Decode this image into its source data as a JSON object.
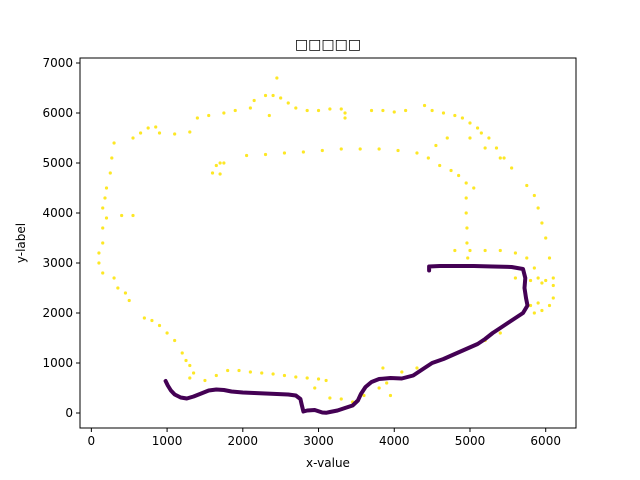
{
  "chart_data": {
    "type": "scatter",
    "title": "□□□□□",
    "xlabel": "x-value",
    "ylabel": "y-label",
    "xlim": [
      -150,
      6400
    ],
    "ylim": [
      -300,
      7100
    ],
    "xticks": [
      0,
      1000,
      2000,
      3000,
      4000,
      5000,
      6000
    ],
    "yticks": [
      0,
      1000,
      2000,
      3000,
      4000,
      5000,
      6000,
      7000
    ],
    "colors": {
      "background_points": "#fde725",
      "highlight_path": "#440154"
    },
    "series": [
      {
        "style": "scatter",
        "color": "#fde725",
        "points": [
          [
            550,
            5500
          ],
          [
            650,
            5600
          ],
          [
            750,
            5700
          ],
          [
            850,
            5720
          ],
          [
            900,
            5600
          ],
          [
            1100,
            5580
          ],
          [
            1300,
            5620
          ],
          [
            1400,
            5900
          ],
          [
            1550,
            5950
          ],
          [
            1750,
            6000
          ],
          [
            1900,
            6050
          ],
          [
            2100,
            6100
          ],
          [
            2150,
            6250
          ],
          [
            2300,
            6350
          ],
          [
            2400,
            6350
          ],
          [
            2500,
            6300
          ],
          [
            2600,
            6200
          ],
          [
            2450,
            6700
          ],
          [
            2700,
            6100
          ],
          [
            2850,
            6050
          ],
          [
            3000,
            6050
          ],
          [
            3150,
            6080
          ],
          [
            3300,
            6080
          ],
          [
            3350,
            6000
          ],
          [
            3350,
            5900
          ],
          [
            2350,
            5950
          ],
          [
            3700,
            6050
          ],
          [
            3850,
            6050
          ],
          [
            4000,
            6020
          ],
          [
            4150,
            6050
          ],
          [
            4400,
            6150
          ],
          [
            4500,
            6050
          ],
          [
            4650,
            6000
          ],
          [
            4800,
            5950
          ],
          [
            4900,
            5900
          ],
          [
            5000,
            5800
          ],
          [
            5100,
            5700
          ],
          [
            5150,
            5600
          ],
          [
            5250,
            5500
          ],
          [
            5350,
            5300
          ],
          [
            5450,
            5100
          ],
          [
            5550,
            4900
          ],
          [
            5750,
            4550
          ],
          [
            5850,
            4350
          ],
          [
            5900,
            4100
          ],
          [
            5950,
            3800
          ],
          [
            6000,
            3500
          ],
          [
            6050,
            3100
          ],
          [
            6100,
            2700
          ],
          [
            6100,
            2300
          ],
          [
            6050,
            2150
          ],
          [
            5950,
            2050
          ],
          [
            5850,
            2000
          ],
          [
            1650,
            4950
          ],
          [
            1700,
            5000
          ],
          [
            1750,
            5000
          ],
          [
            1600,
            4800
          ],
          [
            1700,
            4780
          ],
          [
            2050,
            5150
          ],
          [
            2300,
            5170
          ],
          [
            2550,
            5200
          ],
          [
            2800,
            5220
          ],
          [
            3050,
            5250
          ],
          [
            3300,
            5280
          ],
          [
            3550,
            5280
          ],
          [
            3800,
            5280
          ],
          [
            4050,
            5250
          ],
          [
            4300,
            5200
          ],
          [
            4450,
            5100
          ],
          [
            4600,
            4950
          ],
          [
            4750,
            4850
          ],
          [
            4850,
            4750
          ],
          [
            4950,
            4600
          ],
          [
            5050,
            4500
          ],
          [
            4550,
            5350
          ],
          [
            4700,
            5500
          ],
          [
            5000,
            5500
          ],
          [
            5200,
            5300
          ],
          [
            5400,
            5100
          ],
          [
            4950,
            4300
          ],
          [
            4950,
            4000
          ],
          [
            4960,
            3700
          ],
          [
            4960,
            3400
          ],
          [
            4970,
            3100
          ],
          [
            4800,
            3250
          ],
          [
            5000,
            3250
          ],
          [
            5200,
            3250
          ],
          [
            5400,
            3250
          ],
          [
            5600,
            3200
          ],
          [
            5750,
            3100
          ],
          [
            5850,
            2900
          ],
          [
            5900,
            2700
          ],
          [
            5950,
            2600
          ],
          [
            5600,
            2700
          ],
          [
            5800,
            2650
          ],
          [
            6000,
            2650
          ],
          [
            6100,
            2550
          ],
          [
            5900,
            2200
          ],
          [
            5800,
            2150
          ],
          [
            300,
            5400
          ],
          [
            270,
            5100
          ],
          [
            250,
            4800
          ],
          [
            200,
            4500
          ],
          [
            180,
            4300
          ],
          [
            150,
            4100
          ],
          [
            200,
            3900
          ],
          [
            400,
            3950
          ],
          [
            550,
            3950
          ],
          [
            150,
            3700
          ],
          [
            150,
            3400
          ],
          [
            100,
            3200
          ],
          [
            100,
            3000
          ],
          [
            150,
            2800
          ],
          [
            300,
            2700
          ],
          [
            350,
            2500
          ],
          [
            450,
            2400
          ],
          [
            500,
            2250
          ],
          [
            700,
            1900
          ],
          [
            800,
            1850
          ],
          [
            900,
            1750
          ],
          [
            1000,
            1600
          ],
          [
            1100,
            1450
          ],
          [
            1200,
            1200
          ],
          [
            1250,
            1050
          ],
          [
            1300,
            950
          ],
          [
            1350,
            800
          ],
          [
            1300,
            700
          ],
          [
            1500,
            650
          ],
          [
            1650,
            750
          ],
          [
            1800,
            850
          ],
          [
            1950,
            850
          ],
          [
            2100,
            820
          ],
          [
            2250,
            800
          ],
          [
            2400,
            780
          ],
          [
            2550,
            750
          ],
          [
            2700,
            720
          ],
          [
            2850,
            700
          ],
          [
            3000,
            680
          ],
          [
            3100,
            650
          ],
          [
            2950,
            500
          ],
          [
            3150,
            300
          ],
          [
            3300,
            280
          ],
          [
            3450,
            220
          ],
          [
            3600,
            350
          ],
          [
            3800,
            500
          ],
          [
            3900,
            600
          ],
          [
            4000,
            700
          ],
          [
            4100,
            820
          ],
          [
            4300,
            900
          ],
          [
            4450,
            950
          ],
          [
            4600,
            1050
          ],
          [
            4750,
            1150
          ],
          [
            4900,
            1250
          ],
          [
            5050,
            1350
          ],
          [
            5200,
            1450
          ],
          [
            5400,
            1600
          ],
          [
            3850,
            900
          ],
          [
            3950,
            350
          ]
        ]
      },
      {
        "style": "path",
        "color": "#440154",
        "points": [
          [
            980,
            640
          ],
          [
            1010,
            550
          ],
          [
            1050,
            450
          ],
          [
            1100,
            370
          ],
          [
            1180,
            310
          ],
          [
            1260,
            290
          ],
          [
            1350,
            330
          ],
          [
            1450,
            390
          ],
          [
            1550,
            450
          ],
          [
            1650,
            470
          ],
          [
            1750,
            460
          ],
          [
            1850,
            430
          ],
          [
            2000,
            410
          ],
          [
            2150,
            400
          ],
          [
            2300,
            390
          ],
          [
            2450,
            380
          ],
          [
            2600,
            370
          ],
          [
            2700,
            350
          ],
          [
            2760,
            280
          ],
          [
            2780,
            150
          ],
          [
            2800,
            30
          ],
          [
            2850,
            50
          ],
          [
            2950,
            60
          ],
          [
            3050,
            10
          ],
          [
            3100,
            5
          ],
          [
            3150,
            20
          ],
          [
            3250,
            50
          ],
          [
            3350,
            100
          ],
          [
            3450,
            150
          ],
          [
            3520,
            250
          ],
          [
            3560,
            380
          ],
          [
            3620,
            520
          ],
          [
            3700,
            620
          ],
          [
            3800,
            680
          ],
          [
            3950,
            700
          ],
          [
            4100,
            690
          ],
          [
            4250,
            750
          ],
          [
            4400,
            900
          ],
          [
            4500,
            1000
          ],
          [
            4650,
            1080
          ],
          [
            4800,
            1180
          ],
          [
            4950,
            1280
          ],
          [
            5100,
            1380
          ],
          [
            5200,
            1480
          ],
          [
            5300,
            1600
          ],
          [
            5400,
            1700
          ],
          [
            5500,
            1800
          ],
          [
            5600,
            1900
          ],
          [
            5700,
            2000
          ],
          [
            5760,
            2150
          ],
          [
            5740,
            2300
          ],
          [
            5720,
            2500
          ],
          [
            5730,
            2700
          ],
          [
            5700,
            2880
          ],
          [
            5550,
            2920
          ],
          [
            5300,
            2930
          ],
          [
            5050,
            2940
          ],
          [
            4800,
            2940
          ],
          [
            4600,
            2940
          ],
          [
            4460,
            2930
          ],
          [
            4460,
            2850
          ]
        ]
      }
    ]
  }
}
